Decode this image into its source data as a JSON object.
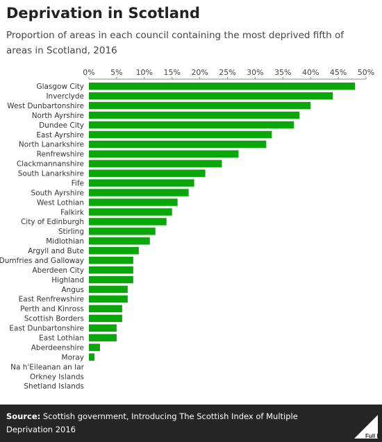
{
  "title": "Deprivation in Scotland",
  "subtitle": "Proportion of areas in each council containing the most deprived fifth of areas in Scotland, 2016",
  "colors": {
    "bar": "#0aa60a",
    "footer_bg": "#262626"
  },
  "footer": {
    "source_label": "Source:",
    "source_text": "Scottish government, Introducing The Scottish Index of Multiple Deprivation 2016",
    "logo_text": "Full Fact"
  },
  "chart_data": {
    "type": "bar",
    "orientation": "horizontal",
    "title": "Deprivation in Scotland",
    "subtitle": "Proportion of areas in each council containing the most deprived fifth of areas in Scotland, 2016",
    "xlim": [
      0,
      50
    ],
    "x_ticks": [
      "0%",
      "5%",
      "10%",
      "15%",
      "20%",
      "25%",
      "30%",
      "35%",
      "40%",
      "45%",
      "50%"
    ],
    "x_tick_values": [
      0,
      5,
      10,
      15,
      20,
      25,
      30,
      35,
      40,
      45,
      50
    ],
    "grid": false,
    "categories": [
      "Glasgow City",
      "Inverclyde",
      "West Dunbartonshire",
      "North Ayrshire",
      "Dundee City",
      "East Ayrshire",
      "North Lanarkshire",
      "Renfrewshire",
      "Clackmannanshire",
      "South Lanarkshire",
      "Fife",
      "South Ayrshire",
      "West Lothian",
      "Falkirk",
      "City of Edinburgh",
      "Stirling",
      "Midlothian",
      "Argyll and Bute",
      "Dumfries and Galloway",
      "Aberdeen City",
      "Highland",
      "Angus",
      "East Renfrewshire",
      "Perth and Kinross",
      "Scottish Borders",
      "East Dunbartonshire",
      "East Lothian",
      "Aberdeenshire",
      "Moray",
      "Na h'Eileanan an Iar",
      "Orkney Islands",
      "Shetland Islands"
    ],
    "values": [
      48,
      44,
      40,
      38,
      37,
      33,
      32,
      27,
      24,
      21,
      19,
      18,
      16,
      15,
      14,
      12,
      11,
      9,
      8,
      8,
      8,
      7,
      7,
      6,
      6,
      5,
      5,
      2,
      1,
      0,
      0,
      0
    ]
  }
}
